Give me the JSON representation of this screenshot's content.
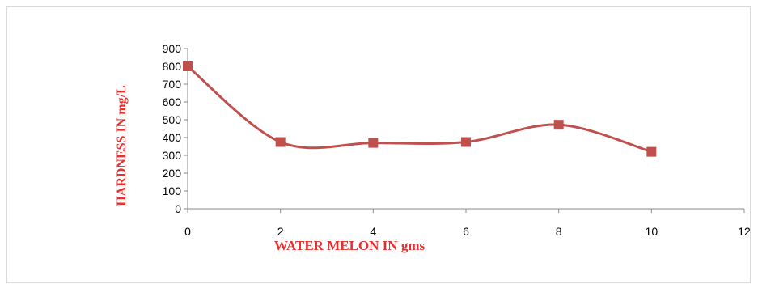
{
  "chart_data": {
    "type": "line",
    "title": "",
    "xlabel": "WATER MELON  IN gms",
    "ylabel": "HARDNESS IN mg/L",
    "x": [
      0,
      2,
      4,
      6,
      8,
      10
    ],
    "series": [
      {
        "values": [
          800,
          375,
          370,
          375,
          472,
          320
        ],
        "color": "#c0504d"
      }
    ],
    "xlim": [
      0,
      12
    ],
    "ylim": [
      0,
      900
    ],
    "xticks": [
      "0",
      "2",
      "4",
      "6",
      "8",
      "10",
      "12"
    ],
    "yticks": [
      "0",
      "100",
      "200",
      "300",
      "400",
      "500",
      "600",
      "700",
      "800",
      "900"
    ],
    "grid": false,
    "legend": "none",
    "smooth": true,
    "marker": "square"
  }
}
